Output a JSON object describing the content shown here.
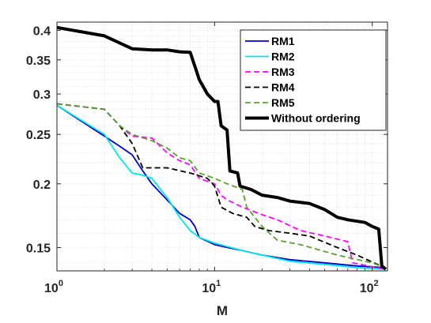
{
  "chart_data": {
    "type": "line",
    "title": "",
    "xlabel": "M",
    "ylabel": "",
    "xscale": "log",
    "yscale": "log",
    "xlim": [
      1,
      125
    ],
    "ylim": [
      0.135,
      0.415
    ],
    "grid": true,
    "legend_position": "top-right",
    "x_ticks": [
      {
        "value": 1,
        "base": "10",
        "exp": "0"
      },
      {
        "value": 10,
        "base": "10",
        "exp": "1"
      },
      {
        "value": 100,
        "base": "10",
        "exp": "2"
      }
    ],
    "y_ticks": [
      {
        "value": 0.15,
        "label": "0.15"
      },
      {
        "value": 0.2,
        "label": "0.2"
      },
      {
        "value": 0.25,
        "label": "0.25"
      },
      {
        "value": 0.3,
        "label": "0.3"
      },
      {
        "value": 0.35,
        "label": "0.35"
      },
      {
        "value": 0.4,
        "label": "0.4"
      }
    ],
    "series": [
      {
        "name": "RM1",
        "color": "#0000cc",
        "dash": "solid",
        "width": 1.8,
        "points": [
          [
            1,
            0.285
          ],
          [
            2,
            0.248
          ],
          [
            2.5,
            0.237
          ],
          [
            3,
            0.228
          ],
          [
            3.5,
            0.212
          ],
          [
            4,
            0.2
          ],
          [
            5,
            0.186
          ],
          [
            6,
            0.175
          ],
          [
            7,
            0.17
          ],
          [
            7.5,
            0.165
          ],
          [
            8,
            0.157
          ],
          [
            10,
            0.152
          ],
          [
            12,
            0.15
          ],
          [
            15,
            0.148
          ],
          [
            20,
            0.145
          ],
          [
            30,
            0.142
          ],
          [
            50,
            0.14
          ],
          [
            80,
            0.138
          ],
          [
            120,
            0.137
          ]
        ]
      },
      {
        "name": "RM2",
        "color": "#00e6e6",
        "dash": "solid",
        "width": 1.8,
        "points": [
          [
            1,
            0.285
          ],
          [
            2,
            0.25
          ],
          [
            2.5,
            0.225
          ],
          [
            3,
            0.21
          ],
          [
            3.5,
            0.208
          ],
          [
            4,
            0.205
          ],
          [
            5,
            0.188
          ],
          [
            6,
            0.172
          ],
          [
            7,
            0.162
          ],
          [
            8,
            0.157
          ],
          [
            10,
            0.153
          ],
          [
            15,
            0.148
          ],
          [
            20,
            0.145
          ],
          [
            30,
            0.141
          ],
          [
            50,
            0.139
          ],
          [
            80,
            0.137
          ],
          [
            120,
            0.136
          ]
        ]
      },
      {
        "name": "RM3",
        "color": "#ff00ff",
        "dash": "dashed",
        "width": 1.8,
        "points": [
          [
            1,
            0.287
          ],
          [
            2,
            0.28
          ],
          [
            2.5,
            0.26
          ],
          [
            3,
            0.248
          ],
          [
            4,
            0.246
          ],
          [
            5,
            0.23
          ],
          [
            6,
            0.222
          ],
          [
            7,
            0.218
          ],
          [
            8,
            0.205
          ],
          [
            10,
            0.2
          ],
          [
            11,
            0.19
          ],
          [
            12,
            0.186
          ],
          [
            15,
            0.18
          ],
          [
            20,
            0.174
          ],
          [
            25,
            0.17
          ],
          [
            35,
            0.162
          ],
          [
            50,
            0.158
          ],
          [
            70,
            0.154
          ],
          [
            75,
            0.14
          ],
          [
            120,
            0.136
          ]
        ]
      },
      {
        "name": "RM4",
        "color": "#000000",
        "dash": "dashed",
        "width": 1.8,
        "points": [
          [
            1,
            0.287
          ],
          [
            2,
            0.28
          ],
          [
            2.5,
            0.26
          ],
          [
            3,
            0.24
          ],
          [
            3.5,
            0.215
          ],
          [
            5,
            0.215
          ],
          [
            7,
            0.21
          ],
          [
            9,
            0.205
          ],
          [
            10,
            0.198
          ],
          [
            11,
            0.18
          ],
          [
            13,
            0.175
          ],
          [
            16,
            0.172
          ],
          [
            18,
            0.165
          ],
          [
            22,
            0.162
          ],
          [
            30,
            0.16
          ],
          [
            40,
            0.158
          ],
          [
            60,
            0.15
          ],
          [
            80,
            0.145
          ],
          [
            120,
            0.137
          ]
        ]
      },
      {
        "name": "RM5",
        "color": "#59a12b",
        "dash": "dashed",
        "width": 1.8,
        "points": [
          [
            1,
            0.287
          ],
          [
            2,
            0.28
          ],
          [
            2.5,
            0.26
          ],
          [
            3,
            0.25
          ],
          [
            4,
            0.243
          ],
          [
            5,
            0.235
          ],
          [
            6,
            0.225
          ],
          [
            7,
            0.222
          ],
          [
            8,
            0.21
          ],
          [
            10,
            0.205
          ],
          [
            12,
            0.2
          ],
          [
            15,
            0.195
          ],
          [
            16,
            0.18
          ],
          [
            20,
            0.165
          ],
          [
            25,
            0.155
          ],
          [
            35,
            0.152
          ],
          [
            60,
            0.145
          ],
          [
            100,
            0.14
          ],
          [
            120,
            0.137
          ]
        ]
      },
      {
        "name": "Without ordering",
        "color": "#000000",
        "dash": "solid",
        "width": 4,
        "points": [
          [
            1,
            0.405
          ],
          [
            2,
            0.39
          ],
          [
            3,
            0.368
          ],
          [
            4,
            0.366
          ],
          [
            5,
            0.366
          ],
          [
            6,
            0.363
          ],
          [
            7,
            0.362
          ],
          [
            7.5,
            0.34
          ],
          [
            8,
            0.32
          ],
          [
            9,
            0.3
          ],
          [
            10,
            0.29
          ],
          [
            10.5,
            0.29
          ],
          [
            11,
            0.26
          ],
          [
            12,
            0.255
          ],
          [
            12.5,
            0.212
          ],
          [
            14,
            0.21
          ],
          [
            14.5,
            0.198
          ],
          [
            17,
            0.195
          ],
          [
            20,
            0.19
          ],
          [
            25,
            0.188
          ],
          [
            30,
            0.185
          ],
          [
            40,
            0.183
          ],
          [
            50,
            0.178
          ],
          [
            60,
            0.172
          ],
          [
            70,
            0.17
          ],
          [
            90,
            0.168
          ],
          [
            100,
            0.165
          ],
          [
            110,
            0.163
          ],
          [
            115,
            0.138
          ],
          [
            122,
            0.136
          ]
        ]
      }
    ]
  }
}
